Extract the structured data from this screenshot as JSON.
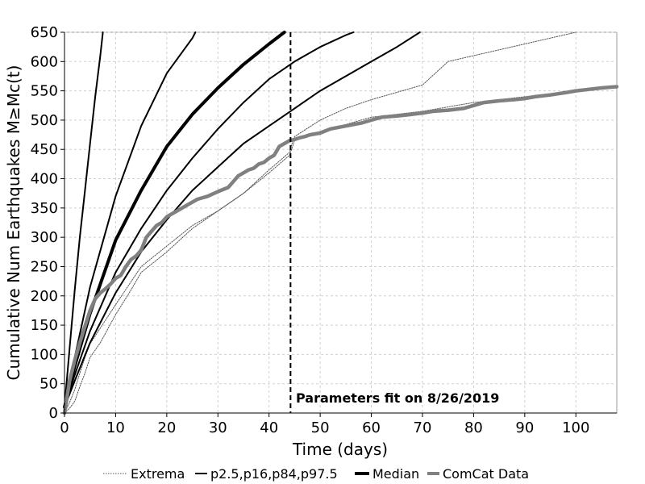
{
  "chart_data": {
    "type": "line",
    "xlabel": "Time (days)",
    "ylabel": "Cumulative Num Earthquakes M≥Mc(t)",
    "xlim": [
      0,
      108
    ],
    "ylim": [
      0,
      650
    ],
    "x_ticks": [
      0,
      10,
      20,
      30,
      40,
      50,
      60,
      70,
      80,
      90,
      100
    ],
    "y_ticks": [
      0,
      50,
      100,
      150,
      200,
      250,
      300,
      350,
      400,
      450,
      500,
      550,
      600,
      650
    ],
    "grid": true,
    "legend_position": "bottom",
    "annotation": {
      "text": "Parameters fit on 8/26/2019",
      "x": 44.2
    },
    "series": [
      {
        "name": "Extrema",
        "style": "dotted",
        "curves": [
          {
            "x": [
              0,
              1,
              2,
              3,
              4,
              5,
              7,
              10,
              15,
              20,
              25,
              30,
              35,
              40,
              44,
              44.5,
              45,
              50,
              55,
              60,
              70,
              75,
              80,
              90,
              100
            ],
            "y": [
              0,
              18,
              40,
              68,
              95,
              118,
              145,
              185,
              250,
              285,
              320,
              345,
              375,
              415,
              445,
              460,
              472,
              500,
              520,
              535,
              560,
              600,
              610,
              630,
              660
            ]
          },
          {
            "x": [
              0,
              1,
              2,
              3,
              4,
              5,
              7,
              10,
              13,
              15,
              20,
              25,
              30,
              35,
              40,
              44,
              45,
              50,
              60,
              70,
              80,
              90,
              100,
              108
            ],
            "y": [
              0,
              8,
              20,
              45,
              68,
              95,
              120,
              168,
              210,
              240,
              275,
              315,
              345,
              375,
              410,
              440,
              465,
              480,
              505,
              515,
              530,
              540,
              550,
              557
            ]
          }
        ]
      },
      {
        "name": "p2.5,p16,p84,p97.5",
        "style": "solid",
        "curves": [
          {
            "x": [
              0,
              1,
              2,
              3,
              4,
              5,
              6,
              7,
              7.5
            ],
            "y": [
              10,
              110,
              210,
              300,
              380,
              460,
              540,
              610,
              650
            ]
          },
          {
            "x": [
              0,
              2,
              5,
              10,
              15,
              20,
              25,
              25.6
            ],
            "y": [
              10,
              95,
              215,
              370,
              490,
              580,
              640,
              650
            ]
          },
          {
            "x": [
              0,
              2,
              5,
              10,
              15,
              20,
              25,
              30,
              35,
              40,
              45,
              50,
              55,
              56.5
            ],
            "y": [
              10,
              65,
              140,
              240,
              315,
              380,
              435,
              485,
              530,
              570,
              600,
              625,
              645,
              650
            ]
          },
          {
            "x": [
              0,
              2,
              5,
              10,
              15,
              20,
              25,
              30,
              35,
              40,
              45,
              50,
              55,
              60,
              65,
              69.5
            ],
            "y": [
              10,
              55,
              120,
              205,
              275,
              330,
              380,
              420,
              460,
              490,
              520,
              550,
              575,
              600,
              625,
              650
            ]
          }
        ]
      },
      {
        "name": "Median",
        "style": "solid-thick",
        "curves": [
          {
            "x": [
              0,
              2,
              5,
              10,
              15,
              20,
              25,
              30,
              35,
              40,
              43
            ],
            "y": [
              10,
              80,
              170,
              295,
              380,
              455,
              510,
              555,
              595,
              630,
              650
            ]
          }
        ]
      },
      {
        "name": "ComCat Data",
        "style": "solid-gray",
        "curves": [
          {
            "x": [
              0,
              1,
              2,
              3,
              4,
              5,
              6,
              7,
              8,
              9,
              10,
              11,
              12,
              13,
              14,
              15,
              16,
              17,
              18,
              19,
              20,
              22,
              24,
              26,
              28,
              30,
              32,
              33,
              34,
              35,
              36,
              37,
              38,
              39,
              40,
              41,
              42,
              43,
              44,
              45,
              46,
              47,
              48,
              50,
              52,
              55,
              58,
              60,
              62,
              65,
              68,
              70,
              72,
              75,
              78,
              80,
              82,
              85,
              88,
              90,
              92,
              95,
              98,
              100,
              102,
              105,
              108
            ],
            "y": [
              0,
              55,
              90,
              120,
              148,
              175,
              195,
              205,
              212,
              220,
              230,
              235,
              250,
              262,
              268,
              278,
              300,
              310,
              320,
              325,
              335,
              345,
              355,
              365,
              370,
              378,
              385,
              395,
              405,
              410,
              415,
              418,
              425,
              428,
              435,
              440,
              455,
              460,
              465,
              467,
              470,
              472,
              475,
              478,
              485,
              490,
              495,
              500,
              505,
              507,
              510,
              512,
              515,
              517,
              520,
              525,
              530,
              533,
              535,
              537,
              540,
              543,
              547,
              550,
              552,
              555,
              557
            ]
          }
        ]
      }
    ]
  }
}
